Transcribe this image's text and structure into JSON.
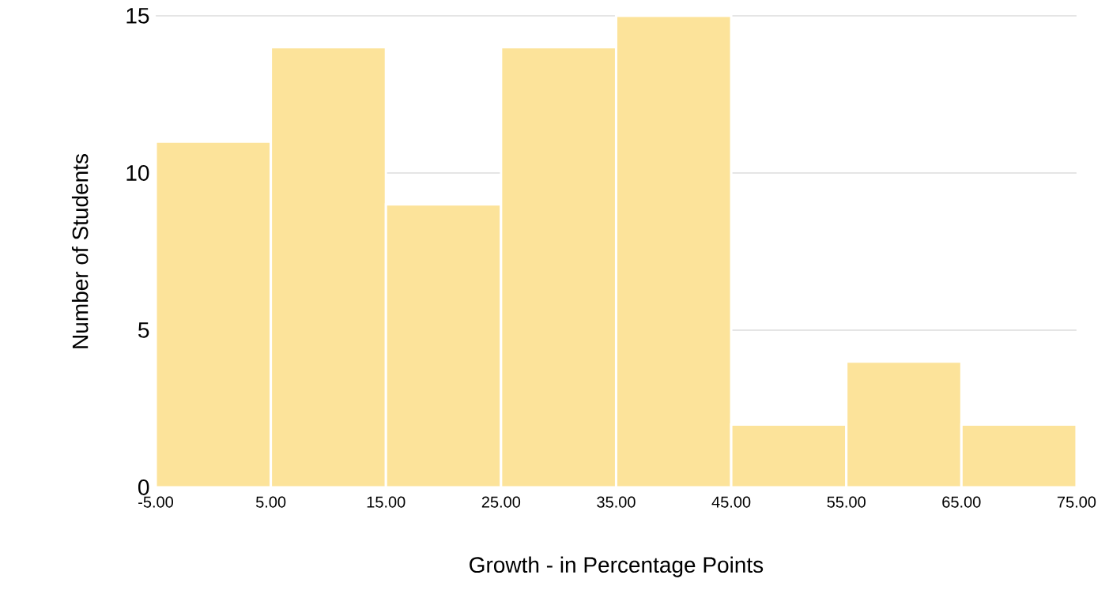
{
  "chart_data": {
    "type": "histogram",
    "xlabel": "Growth - in Percentage Points",
    "ylabel": "Number of Students",
    "bins": [
      -5,
      5,
      15,
      25,
      35,
      45,
      55,
      65,
      75
    ],
    "values": [
      11,
      14,
      9,
      14,
      15,
      2,
      4,
      2
    ],
    "color": "#fce39a",
    "xlim": [
      -5,
      75
    ],
    "xticks": [
      {
        "value": -5,
        "label": "-5.00"
      },
      {
        "value": 5,
        "label": "5.00"
      },
      {
        "value": 15,
        "label": "15.00"
      },
      {
        "value": 25,
        "label": "25.00"
      },
      {
        "value": 35,
        "label": "35.00"
      },
      {
        "value": 45,
        "label": "45.00"
      },
      {
        "value": 55,
        "label": "55.00"
      },
      {
        "value": 65,
        "label": "65.00"
      },
      {
        "value": 75,
        "label": "75.00"
      }
    ],
    "ylim": [
      0,
      15
    ],
    "yticks": [
      0,
      5,
      10,
      15
    ],
    "grid": "y"
  }
}
